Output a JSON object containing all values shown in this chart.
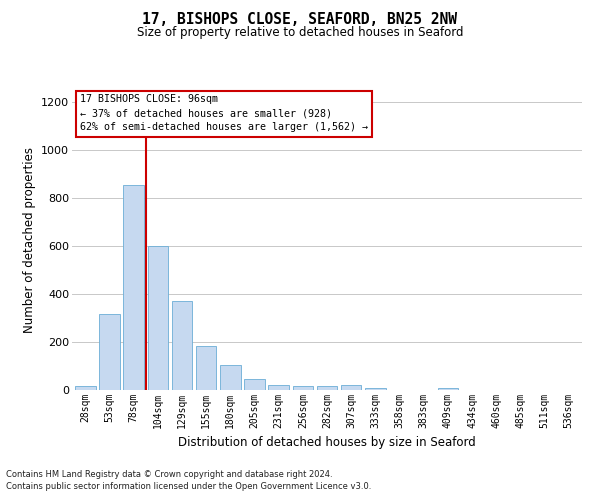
{
  "title": "17, BISHOPS CLOSE, SEAFORD, BN25 2NW",
  "subtitle": "Size of property relative to detached houses in Seaford",
  "xlabel": "Distribution of detached houses by size in Seaford",
  "ylabel": "Number of detached properties",
  "categories": [
    "28sqm",
    "53sqm",
    "78sqm",
    "104sqm",
    "129sqm",
    "155sqm",
    "180sqm",
    "205sqm",
    "231sqm",
    "256sqm",
    "282sqm",
    "307sqm",
    "333sqm",
    "358sqm",
    "383sqm",
    "409sqm",
    "434sqm",
    "460sqm",
    "485sqm",
    "511sqm",
    "536sqm"
  ],
  "values": [
    15,
    315,
    855,
    600,
    370,
    185,
    105,
    45,
    20,
    18,
    18,
    20,
    10,
    0,
    0,
    10,
    0,
    0,
    0,
    0,
    0
  ],
  "bar_color": "#c6d9f0",
  "bar_edge_color": "#6baed6",
  "annotation_line1": "17 BISHOPS CLOSE: 96sqm",
  "annotation_line2": "← 37% of detached houses are smaller (928)",
  "annotation_line3": "62% of semi-detached houses are larger (1,562) →",
  "ylim": [
    0,
    1250
  ],
  "yticks": [
    0,
    200,
    400,
    600,
    800,
    1000,
    1200
  ],
  "footer1": "Contains HM Land Registry data © Crown copyright and database right 2024.",
  "footer2": "Contains public sector information licensed under the Open Government Licence v3.0.",
  "bg_color": "#ffffff",
  "grid_color": "#c8c8c8",
  "annotation_box_color": "#cc0000",
  "redline_color": "#cc0000"
}
